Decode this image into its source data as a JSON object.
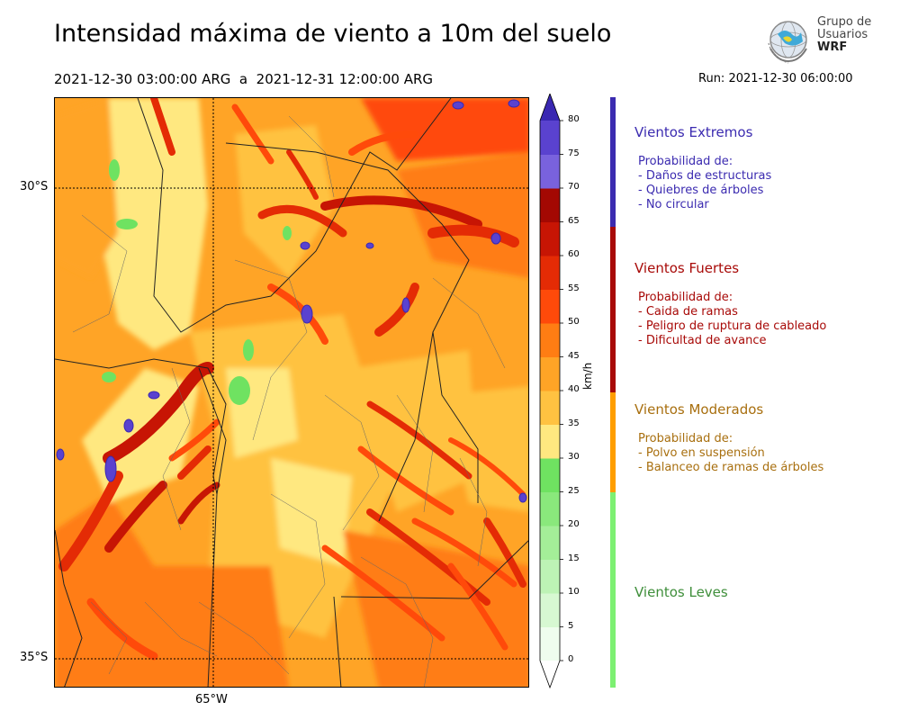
{
  "title": "Intensidad máxima de viento a 10m del suelo",
  "subtitle": "2021-12-30 03:00:00 ARG  a  2021-12-31 12:00:00 ARG",
  "run_label": "Run: 2021-12-30 06:00:00",
  "logo": {
    "line1": "Grupo de",
    "line2": "Usuarios",
    "line3": "WRF"
  },
  "map": {
    "lat_labels": [
      "30°S",
      "35°S"
    ],
    "lon_labels": [
      "65°W"
    ]
  },
  "colorbar": {
    "unit": "km/h",
    "ticks": [
      "0",
      "5",
      "10",
      "15",
      "20",
      "25",
      "30",
      "35",
      "40",
      "45",
      "50",
      "55",
      "60",
      "65",
      "70",
      "75",
      "80"
    ],
    "colors": [
      "#effdee",
      "#d7f8d2",
      "#bdf3b5",
      "#a4ee98",
      "#8ae87c",
      "#6fe261",
      "#ffe880",
      "#ffc241",
      "#ffa426",
      "#ff7d13",
      "#ff4a0a",
      "#e42b05",
      "#c71504",
      "#a30802",
      "#7962dd",
      "#5a42cf",
      "#3a28b2"
    ]
  },
  "categories": [
    {
      "title": "Vientos Extremos",
      "color": "#3b2bb0",
      "lines": [
        "Probabilidad de:",
        "- Daños de estructuras",
        "- Quiebres de árboles",
        "- No circular"
      ]
    },
    {
      "title": "Vientos Fuertes",
      "color": "#a80a08",
      "lines": [
        "Probabilidad de:",
        "- Caida de ramas",
        "- Peligro de ruptura de cableado",
        "- Dificultad de avance"
      ]
    },
    {
      "title": "Vientos Moderados",
      "color": "#a86f0f",
      "bar_color": "#ff9e00",
      "lines": [
        "Probabilidad de:",
        "- Polvo en suspensión",
        "- Balanceo de ramas de árboles"
      ]
    },
    {
      "title": "Vientos Leves",
      "color": "#3e8e3a",
      "bar_color": "#7df072",
      "lines": []
    }
  ]
}
